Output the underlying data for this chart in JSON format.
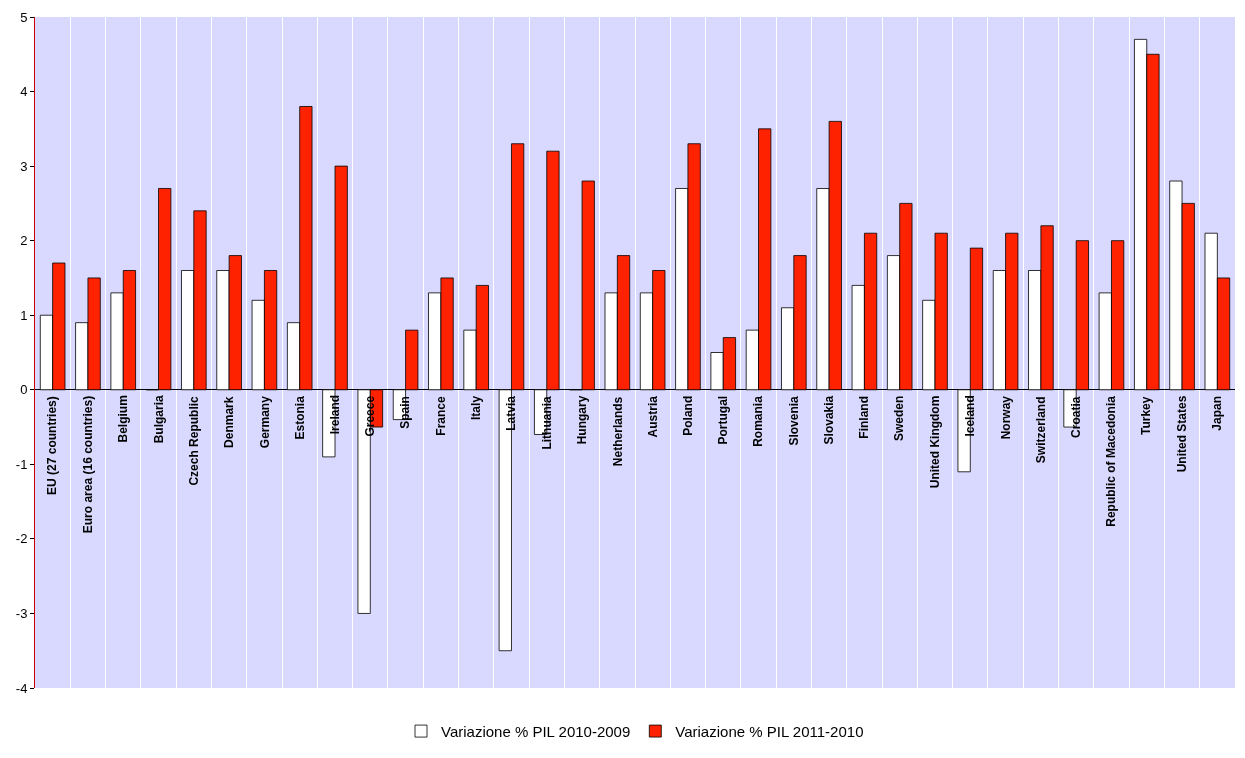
{
  "chart_data": {
    "type": "bar",
    "categories": [
      "EU (27 countries)",
      "Euro area (16 countries)",
      "Belgium",
      "Bulgaria",
      "Czech Republic",
      "Denmark",
      "Germany",
      "Estonia",
      "Ireland",
      "Greece",
      "Spain",
      "France",
      "Italy",
      "Latvia",
      "Lithuania",
      "Hungary",
      "Netherlands",
      "Austria",
      "Poland",
      "Portugal",
      "Romania",
      "Slovenia",
      "Slovakia",
      "Finland",
      "Sweden",
      "United Kingdom",
      "Iceland",
      "Norway",
      "Switzerland",
      "Croatia",
      "Republic of Macedonia",
      "Turkey",
      "United States",
      "Japan"
    ],
    "series": [
      {
        "name": "Variazione % PIL 2010-2009",
        "color": "#ffffff",
        "values": [
          1.0,
          0.9,
          1.3,
          0,
          1.6,
          1.6,
          1.2,
          0.9,
          -0.9,
          -3.0,
          -0.4,
          1.3,
          0.8,
          -3.5,
          -0.6,
          0,
          1.3,
          1.3,
          2.7,
          0.5,
          0.8,
          1.1,
          2.7,
          1.4,
          1.8,
          1.2,
          -1.1,
          1.6,
          1.6,
          -0.5,
          1.3,
          4.7,
          2.8,
          2.1
        ]
      },
      {
        "name": "Variazione % PIL 2011-2010",
        "color": "#ff2200",
        "values": [
          1.7,
          1.5,
          1.6,
          2.7,
          2.4,
          1.8,
          1.6,
          3.8,
          3.0,
          -0.5,
          0.8,
          1.5,
          1.4,
          3.3,
          3.2,
          2.8,
          1.8,
          1.6,
          3.3,
          0.7,
          3.5,
          1.8,
          3.6,
          2.1,
          2.5,
          2.1,
          1.9,
          2.1,
          2.2,
          2.0,
          2.0,
          4.5,
          2.5,
          1.5
        ]
      }
    ],
    "ylim": [
      -4,
      5
    ],
    "yticks": [
      -4,
      -3,
      -2,
      -1,
      0,
      1,
      2,
      3,
      4,
      5
    ],
    "grid": "x",
    "legend": "bottom"
  }
}
